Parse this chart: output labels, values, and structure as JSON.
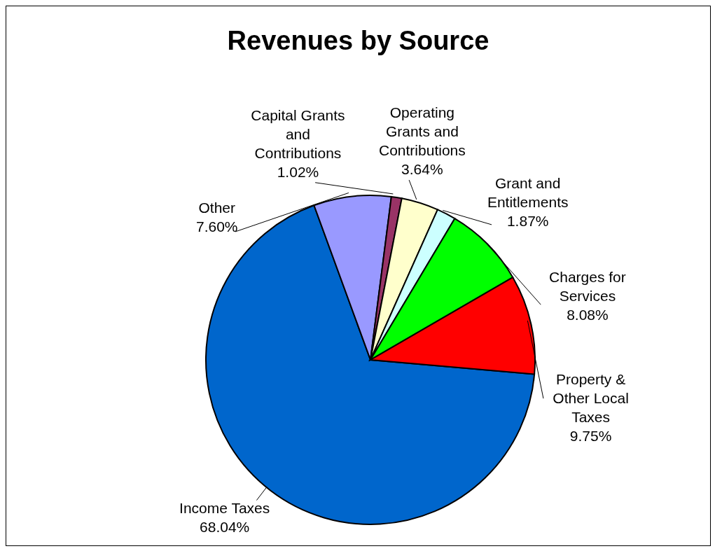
{
  "chart_data": {
    "type": "pie",
    "title": "Revenues by Source",
    "categories": [
      "Income Taxes",
      "Other",
      "Capital Grants and Contributions",
      "Operating Grants and Contributions",
      "Grant and Entitlements",
      "Charges for Services",
      "Property & Other Local Taxes"
    ],
    "values": [
      68.04,
      7.6,
      1.02,
      3.64,
      1.87,
      8.08,
      9.75
    ],
    "value_labels": [
      "68.04%",
      "7.60%",
      "1.02%",
      "3.64%",
      "1.87%",
      "8.08%",
      "9.75%"
    ],
    "colors": [
      "#0066cc",
      "#9999ff",
      "#993366",
      "#ffffcc",
      "#ccffff",
      "#00ff00",
      "#ff0000"
    ],
    "legend": false
  }
}
